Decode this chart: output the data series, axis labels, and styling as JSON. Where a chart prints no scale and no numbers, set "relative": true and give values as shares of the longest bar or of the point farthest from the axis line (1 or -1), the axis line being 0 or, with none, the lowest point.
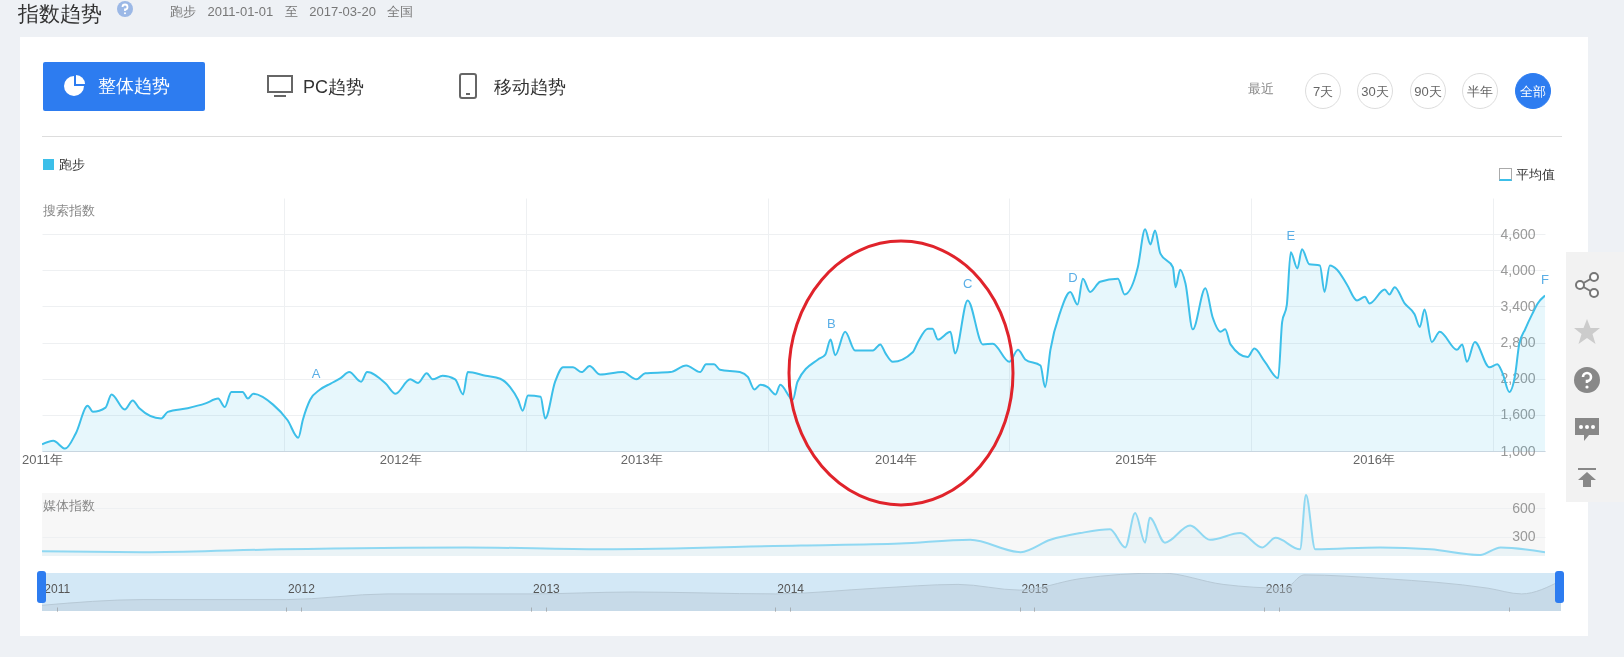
{
  "chart_data": [
    {
      "type": "area",
      "title": "指数趋势",
      "subtitle": "跑步 2011-01-01 至 2017-03-20 全国",
      "ylabel": "搜索指数",
      "legend": "top left",
      "grid": true,
      "annotations": [
        "整体趋势",
        "PC趋势",
        "移动趋势",
        "最近",
        "7天",
        "30天",
        "90天",
        "半年",
        "全部",
        "平均值",
        {
          "text": "A",
          "x": "2012-02-19",
          "y": 2020
        },
        {
          "text": "B",
          "x": "2014-04-07",
          "y": 2850
        },
        {
          "text": "C",
          "x": "2014-10-30",
          "y": 3500
        },
        {
          "text": "D",
          "x": "2015-04-07",
          "y": 3600
        },
        {
          "text": "E",
          "x": "2016-03-01",
          "y": 4300
        },
        {
          "text": "F",
          "x": "2017-03-20",
          "y": 3580
        }
      ],
      "xlim": [
        "2011-01-01",
        "2017-03-20"
      ],
      "ylim": [
        1000,
        5200
      ],
      "xticks": [
        {
          "value": "2011-01-01",
          "label": "2011年"
        },
        {
          "value": "2012-01-01",
          "label": null
        },
        {
          "value": "2012-06-25",
          "label": "2012年"
        },
        {
          "value": "2013-01-01",
          "label": null
        },
        {
          "value": "2013-06-24",
          "label": "2013年"
        },
        {
          "value": "2014-01-01",
          "label": null
        },
        {
          "value": "2014-07-13",
          "label": "2014年"
        },
        {
          "value": "2015-01-01",
          "label": null
        },
        {
          "value": "2015-07-11",
          "label": "2015年"
        },
        {
          "value": "2016-01-01",
          "label": null
        },
        {
          "value": "2016-07-04",
          "label": "2016年"
        },
        {
          "value": "2017-01-01",
          "label": null
        }
      ],
      "yticks": [
        {
          "value": 1000,
          "label": "1,000"
        },
        {
          "value": 1600,
          "label": "1,600"
        },
        {
          "value": 2200,
          "label": "2,200"
        },
        {
          "value": 2800,
          "label": "2,800"
        },
        {
          "value": 3400,
          "label": "3,400"
        },
        {
          "value": 4000,
          "label": "4,000"
        },
        {
          "value": 4600,
          "label": "4,600"
        }
      ],
      "series": [
        {
          "name": "跑步",
          "color": "#3cbfe9",
          "x": [
            "2011-01-01",
            "2011-01-18",
            "2011-02-05",
            "2011-02-21",
            "2011-03-11",
            "2011-03-19",
            "2011-04-07",
            "2011-04-16",
            "2011-05-06",
            "2011-05-18",
            "2011-05-28",
            "2011-06-30",
            "2011-07-10",
            "2011-08-09",
            "2011-09-05",
            "2011-09-24",
            "2011-10-04",
            "2011-10-14",
            "2011-10-31",
            "2011-11-08",
            "2011-11-16",
            "2011-12-16",
            "2012-01-07",
            "2012-01-23",
            "2012-01-30",
            "2012-02-10",
            "2012-02-25",
            "2012-03-12",
            "2012-03-27",
            "2012-04-09",
            "2012-04-27",
            "2012-05-06",
            "2012-06-03",
            "2012-06-18",
            "2012-07-10",
            "2012-07-22",
            "2012-08-04",
            "2012-08-13",
            "2012-08-28",
            "2012-09-16",
            "2012-09-28",
            "2012-10-05",
            "2012-11-01",
            "2012-11-23",
            "2012-12-08",
            "2012-12-20",
            "2012-12-27",
            "2013-01-04",
            "2013-01-23",
            "2013-01-30",
            "2013-02-14",
            "2013-02-26",
            "2013-03-13",
            "2013-03-26",
            "2013-04-07",
            "2013-04-23",
            "2013-05-27",
            "2013-06-17",
            "2013-06-30",
            "2013-08-07",
            "2013-08-31",
            "2013-09-21",
            "2013-09-30",
            "2013-10-12",
            "2013-10-21",
            "2013-11-20",
            "2013-12-02",
            "2013-12-12",
            "2013-12-21",
            "2014-01-01",
            "2014-01-13",
            "2014-01-20",
            "2014-02-08",
            "2014-02-15",
            "2014-03-18",
            "2014-03-29",
            "2014-04-06",
            "2014-04-13",
            "2014-04-28",
            "2014-05-13",
            "2014-06-09",
            "2014-06-20",
            "2014-06-28",
            "2014-07-09",
            "2014-08-08",
            "2014-08-16",
            "2014-08-31",
            "2014-09-07",
            "2014-09-15",
            "2014-10-04",
            "2014-10-11",
            "2014-10-30",
            "2014-11-22",
            "2014-12-07",
            "2015-01-01",
            "2015-01-14",
            "2015-01-25",
            "2015-02-17",
            "2015-02-24",
            "2015-03-04",
            "2015-03-19",
            "2015-04-03",
            "2015-04-14",
            "2015-04-22",
            "2015-05-03",
            "2015-05-18",
            "2015-06-14",
            "2015-06-24",
            "2015-07-14",
            "2015-07-25",
            "2015-08-02",
            "2015-08-09",
            "2015-08-17",
            "2015-09-05",
            "2015-09-09",
            "2015-09-16",
            "2015-09-24",
            "2015-10-05",
            "2015-10-24",
            "2015-11-04",
            "2015-11-16",
            "2015-11-23",
            "2015-12-01",
            "2015-12-27",
            "2016-01-06",
            "2016-01-22",
            "2016-02-11",
            "2016-02-17",
            "2016-02-24",
            "2016-03-01",
            "2016-03-11",
            "2016-03-18",
            "2016-03-29",
            "2016-04-14",
            "2016-04-21",
            "2016-04-29",
            "2016-05-10",
            "2016-05-25",
            "2016-06-09",
            "2016-06-21",
            "2016-06-28",
            "2016-07-21",
            "2016-07-28",
            "2016-08-05",
            "2016-08-20",
            "2016-09-04",
            "2016-09-12",
            "2016-09-19",
            "2016-09-30",
            "2016-10-12",
            "2016-11-07",
            "2016-11-15",
            "2016-11-22",
            "2016-12-04",
            "2016-12-26",
            "2017-01-07",
            "2017-01-15",
            "2017-01-25",
            "2017-02-03",
            "2017-02-09",
            "2017-02-18",
            "2017-03-01",
            "2017-03-09",
            "2017-03-20"
          ],
          "values": [
            1110,
            1170,
            1040,
            1290,
            1750,
            1650,
            1720,
            1940,
            1690,
            1840,
            1710,
            1540,
            1650,
            1710,
            1790,
            1870,
            1730,
            1980,
            1980,
            1870,
            1950,
            1770,
            1510,
            1220,
            1520,
            1850,
            2020,
            2120,
            2210,
            2310,
            2150,
            2310,
            2120,
            1950,
            2190,
            2130,
            2290,
            2190,
            2250,
            2190,
            1940,
            2310,
            2250,
            2200,
            2060,
            1850,
            1670,
            1920,
            1900,
            1540,
            2150,
            2390,
            2390,
            2310,
            2410,
            2270,
            2310,
            2190,
            2290,
            2310,
            2420,
            2310,
            2440,
            2440,
            2350,
            2310,
            2230,
            2020,
            2100,
            2060,
            1940,
            2100,
            1850,
            2150,
            2520,
            2600,
            2850,
            2590,
            2980,
            2670,
            2670,
            2770,
            2620,
            2480,
            2640,
            2810,
            3030,
            3030,
            2850,
            2980,
            2620,
            3500,
            2770,
            2780,
            2480,
            2680,
            2520,
            2420,
            2060,
            2680,
            3310,
            3640,
            3430,
            3860,
            3640,
            3810,
            3860,
            3600,
            4050,
            4680,
            4430,
            4660,
            4280,
            4050,
            3720,
            4010,
            3780,
            3020,
            3700,
            3220,
            2980,
            3020,
            2770,
            2560,
            2700,
            2480,
            2210,
            3140,
            3420,
            4300,
            4030,
            4350,
            4100,
            4080,
            3640,
            4080,
            4010,
            3760,
            3500,
            3560,
            3450,
            3680,
            3600,
            3720,
            3450,
            3270,
            3060,
            3350,
            2810,
            2980,
            2680,
            2770,
            2480,
            2810,
            2390,
            2440,
            2290,
            1980,
            2270,
            2770,
            3020,
            3280,
            3450,
            3580
          ]
        }
      ]
    },
    {
      "type": "area",
      "ylabel": "媒体指数",
      "grid": "y",
      "tick_labels": "y",
      "xlim": [
        "2011-01-01",
        "2017-03-20"
      ],
      "ylim": [
        100,
        760
      ],
      "yticks": [
        300,
        600
      ],
      "series": [
        {
          "color": "#8fd8f2",
          "x": [
            "2011-01-01",
            "2011-06-14",
            "2011-12-27",
            "2012-10-02",
            "2013-04-25",
            "2014-02-20",
            "2014-07-20",
            "2014-11-03",
            "2015-01-18",
            "2015-03-04",
            "2015-04-18",
            "2015-06-02",
            "2015-06-25",
            "2015-07-10",
            "2015-07-25",
            "2015-08-01",
            "2015-08-24",
            "2015-10-01",
            "2015-10-31",
            "2015-12-16",
            "2016-01-18",
            "2016-02-07",
            "2016-03-15",
            "2016-03-24",
            "2016-04-07",
            "2016-07-14",
            "2016-09-28",
            "2016-12-12",
            "2017-01-12",
            "2017-03-20"
          ],
          "values": [
            150,
            140,
            170,
            190,
            170,
            210,
            230,
            270,
            140,
            270,
            340,
            380,
            190,
            550,
            240,
            500,
            240,
            420,
            270,
            340,
            190,
            290,
            170,
            740,
            170,
            190,
            170,
            110,
            190,
            140
          ]
        }
      ]
    },
    {
      "type": "area",
      "relative": true,
      "tick_labels": "x",
      "xlim": [
        "2011-01-01",
        "2017-03-20"
      ],
      "xticks": [
        {
          "value": "2011-01-23",
          "label": "2011"
        },
        {
          "value": "2012-01-01",
          "label": null
        },
        {
          "value": "2012-01-23",
          "label": "2012"
        },
        {
          "value": "2013-01-01",
          "label": null
        },
        {
          "value": "2013-01-23",
          "label": "2013"
        },
        {
          "value": "2014-01-01",
          "label": null
        },
        {
          "value": "2014-01-23",
          "label": "2014"
        },
        {
          "value": "2015-01-01",
          "label": null
        },
        {
          "value": "2015-01-23",
          "label": "2015"
        },
        {
          "value": "2016-01-01",
          "label": null
        },
        {
          "value": "2016-01-23",
          "label": "2016"
        },
        {
          "value": "2017-01-01",
          "label": null
        }
      ],
      "series": [
        {
          "color": "#b7c9d6",
          "x": [
            "2011-01-01",
            "2011-06-01",
            "2012-01-01",
            "2012-06-01",
            "2013-01-01",
            "2013-06-01",
            "2014-01-01",
            "2014-06-01",
            "2014-10-01",
            "2015-01-01",
            "2015-04-01",
            "2015-08-01",
            "2015-11-01",
            "2016-02-01",
            "2016-03-01",
            "2016-07-01",
            "2016-12-01",
            "2017-01-20",
            "2017-03-20"
          ],
          "values": [
            0.15,
            0.3,
            0.3,
            0.45,
            0.45,
            0.5,
            0.45,
            0.6,
            0.7,
            0.55,
            0.85,
            1,
            0.7,
            0.6,
            0.95,
            0.85,
            0.6,
            0.45,
            0.8
          ]
        }
      ]
    }
  ]
}
